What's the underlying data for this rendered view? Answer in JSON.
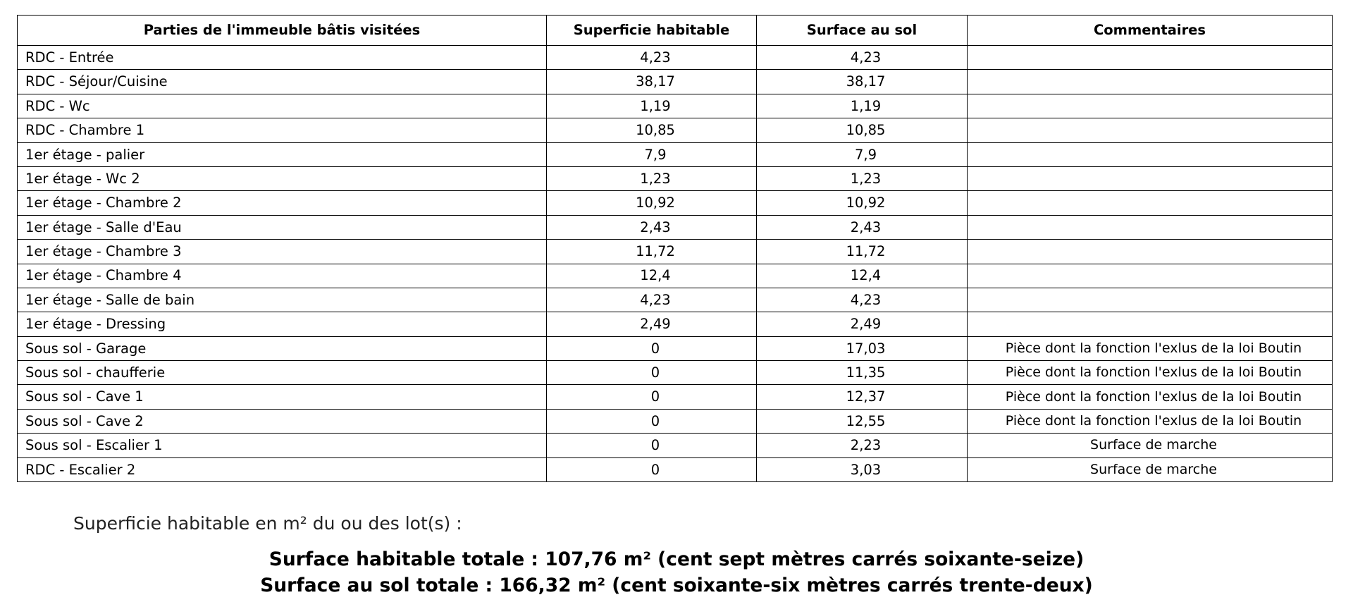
{
  "table": {
    "headers": [
      "Parties de l'immeuble bâtis visitées",
      "Superficie habitable",
      "Surface au sol",
      "Commentaires"
    ],
    "rows": [
      [
        "RDC - Entrée",
        "4,23",
        "4,23",
        ""
      ],
      [
        "RDC - Séjour/Cuisine",
        "38,17",
        "38,17",
        ""
      ],
      [
        "RDC - Wc",
        "1,19",
        "1,19",
        ""
      ],
      [
        "RDC - Chambre 1",
        "10,85",
        "10,85",
        ""
      ],
      [
        "1er étage - palier",
        "7,9",
        "7,9",
        ""
      ],
      [
        "1er étage - Wc 2",
        "1,23",
        "1,23",
        ""
      ],
      [
        "1er étage - Chambre 2",
        "10,92",
        "10,92",
        ""
      ],
      [
        "1er étage - Salle d'Eau",
        "2,43",
        "2,43",
        ""
      ],
      [
        "1er étage - Chambre 3",
        "11,72",
        "11,72",
        ""
      ],
      [
        "1er étage - Chambre 4",
        "12,4",
        "12,4",
        ""
      ],
      [
        "1er étage - Salle de bain",
        "4,23",
        "4,23",
        ""
      ],
      [
        "1er étage - Dressing",
        "2,49",
        "2,49",
        ""
      ],
      [
        "Sous sol - Garage",
        "0",
        "17,03",
        "Pièce dont la fonction l'exlus de la loi Boutin"
      ],
      [
        "Sous sol - chaufferie",
        "0",
        "11,35",
        "Pièce dont la fonction l'exlus de la loi Boutin"
      ],
      [
        "Sous sol - Cave 1",
        "0",
        "12,37",
        "Pièce dont la fonction l'exlus de la loi Boutin"
      ],
      [
        "Sous sol - Cave 2",
        "0",
        "12,55",
        "Pièce dont la fonction l'exlus de la loi Boutin"
      ],
      [
        "Sous sol - Escalier 1",
        "0",
        "2,23",
        "Surface de marche"
      ],
      [
        "RDC - Escalier 2",
        "0",
        "3,03",
        "Surface de marche"
      ]
    ]
  },
  "summary": {
    "label": "Superficie habitable en m² du ou des lot(s) :",
    "total_habitable": "Surface habitable totale : 107,76 m² (cent sept mètres carrés soixante-seize)",
    "total_sol": "Surface au sol totale : 166,32 m² (cent soixante-six mètres carrés trente-deux)"
  }
}
